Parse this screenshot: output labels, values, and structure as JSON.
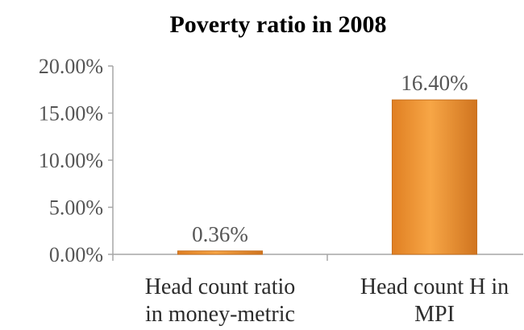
{
  "chart_data": {
    "type": "bar",
    "title": "Poverty ratio in 2008",
    "xlabel": "",
    "ylabel": "",
    "categories": [
      [
        "Head count ratio",
        "in money-metric"
      ],
      [
        "Head count H in",
        "MPI"
      ]
    ],
    "values": [
      0.36,
      16.4
    ],
    "data_labels": [
      "0.36%",
      "16.40%"
    ],
    "yticks": [
      "0.00%",
      "5.00%",
      "10.00%",
      "15.00%",
      "20.00%"
    ],
    "ylim": [
      0,
      20
    ],
    "ytick_step": 5,
    "grid": false,
    "legend": "none",
    "bar_color": "#F39A32",
    "bar_edge_color": "#C8701E",
    "axis_color": "#A6A6A6"
  }
}
